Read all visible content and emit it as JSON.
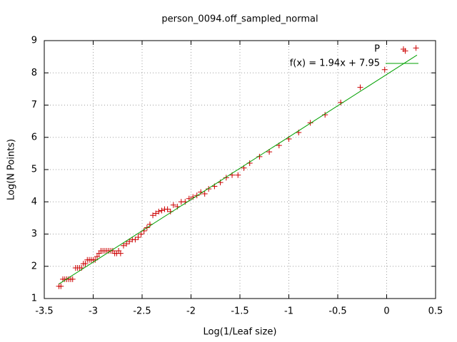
{
  "chart_data": {
    "type": "scatter",
    "title": "person_0094.off_sampled_normal",
    "xlabel": "Log(1/Leaf size)",
    "ylabel": "Log(N Points)",
    "xlim": [
      -3.5,
      0.5
    ],
    "ylim": [
      1,
      9
    ],
    "xticks": [
      -3.5,
      -3,
      -2.5,
      -2,
      -1.5,
      -1,
      -0.5,
      0,
      0.5
    ],
    "yticks": [
      1,
      2,
      3,
      4,
      5,
      6,
      7,
      8,
      9
    ],
    "grid": true,
    "legend": "top-right",
    "series": [
      {
        "name": "P",
        "color": "#cc0000",
        "x": [
          -3.35,
          -3.33,
          -3.31,
          -3.29,
          -3.27,
          -3.25,
          -3.23,
          -3.21,
          -3.18,
          -3.16,
          -3.14,
          -3.12,
          -3.1,
          -3.08,
          -3.06,
          -3.04,
          -3.02,
          -3.0,
          -2.98,
          -2.96,
          -2.94,
          -2.92,
          -2.9,
          -2.88,
          -2.86,
          -2.84,
          -2.82,
          -2.8,
          -2.78,
          -2.76,
          -2.74,
          -2.72,
          -2.69,
          -2.66,
          -2.63,
          -2.6,
          -2.57,
          -2.54,
          -2.51,
          -2.48,
          -2.45,
          -2.42,
          -2.39,
          -2.36,
          -2.33,
          -2.3,
          -2.27,
          -2.24,
          -2.21,
          -2.18,
          -2.14,
          -2.1,
          -2.06,
          -2.02,
          -1.98,
          -1.94,
          -1.9,
          -1.86,
          -1.82,
          -1.76,
          -1.7,
          -1.64,
          -1.58,
          -1.52,
          -1.46,
          -1.4,
          -1.3,
          -1.2,
          -1.1,
          -1.0,
          -0.9,
          -0.78,
          -0.63,
          -0.47,
          -0.27,
          -0.02,
          0.19,
          0.3
        ],
        "y": [
          1.38,
          1.38,
          1.6,
          1.6,
          1.6,
          1.6,
          1.6,
          1.6,
          1.95,
          1.95,
          1.95,
          1.95,
          2.08,
          2.08,
          2.2,
          2.2,
          2.2,
          2.2,
          2.2,
          2.3,
          2.4,
          2.48,
          2.48,
          2.48,
          2.48,
          2.48,
          2.48,
          2.48,
          2.4,
          2.4,
          2.48,
          2.4,
          2.64,
          2.7,
          2.77,
          2.83,
          2.83,
          2.9,
          3.0,
          3.1,
          3.2,
          3.3,
          3.58,
          3.64,
          3.7,
          3.73,
          3.77,
          3.77,
          3.7,
          3.9,
          3.85,
          4.0,
          4.0,
          4.1,
          4.15,
          4.2,
          4.3,
          4.25,
          4.4,
          4.48,
          4.6,
          4.75,
          4.83,
          4.83,
          5.05,
          5.2,
          5.4,
          5.55,
          5.75,
          5.95,
          6.15,
          6.45,
          6.7,
          7.08,
          7.55,
          8.1,
          8.68,
          8.77
        ]
      }
    ],
    "fit": {
      "name": "f(x) = 1.94x + 7.95",
      "color": "#00a000",
      "slope": 1.94,
      "intercept": 7.95,
      "xrange": [
        -3.35,
        0.31
      ]
    }
  }
}
